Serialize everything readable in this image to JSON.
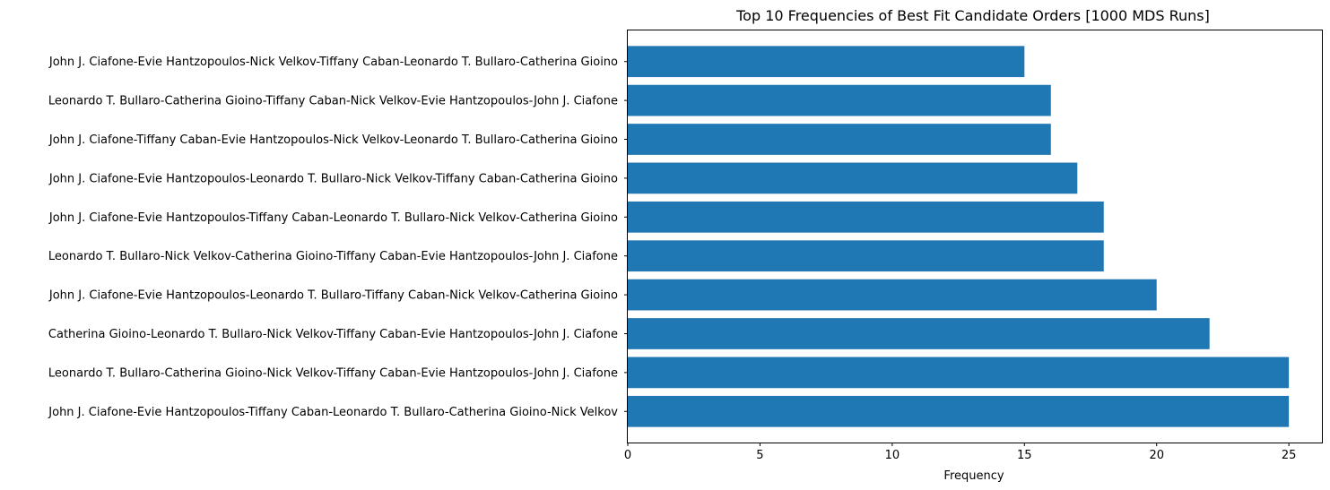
{
  "chart_data": {
    "type": "bar",
    "orientation": "horizontal",
    "title": "Top 10 Frequencies of Best Fit Candidate Orders [1000 MDS Runs]",
    "xlabel": "Frequency",
    "ylabel": "",
    "xlim": [
      0,
      26.25
    ],
    "xticks": [
      0,
      5,
      10,
      15,
      20,
      25
    ],
    "grid": false,
    "bar_color": "#1f77b4",
    "categories": [
      "John J. Ciafone-Evie Hantzopoulos-Tiffany Caban-Leonardo T. Bullaro-Catherina Gioino-Nick Velkov",
      "Leonardo T. Bullaro-Catherina Gioino-Nick Velkov-Tiffany Caban-Evie Hantzopoulos-John J. Ciafone",
      "Catherina Gioino-Leonardo T. Bullaro-Nick Velkov-Tiffany Caban-Evie Hantzopoulos-John J. Ciafone",
      "John J. Ciafone-Evie Hantzopoulos-Leonardo T. Bullaro-Tiffany Caban-Nick Velkov-Catherina Gioino",
      "Leonardo T. Bullaro-Nick Velkov-Catherina Gioino-Tiffany Caban-Evie Hantzopoulos-John J. Ciafone",
      "John J. Ciafone-Evie Hantzopoulos-Tiffany Caban-Leonardo T. Bullaro-Nick Velkov-Catherina Gioino",
      "John J. Ciafone-Evie Hantzopoulos-Leonardo T. Bullaro-Nick Velkov-Tiffany Caban-Catherina Gioino",
      "John J. Ciafone-Tiffany Caban-Evie Hantzopoulos-Nick Velkov-Leonardo T. Bullaro-Catherina Gioino",
      "Leonardo T. Bullaro-Catherina Gioino-Tiffany Caban-Nick Velkov-Evie Hantzopoulos-John J. Ciafone",
      "John J. Ciafone-Evie Hantzopoulos-Nick Velkov-Tiffany Caban-Leonardo T. Bullaro-Catherina Gioino"
    ],
    "values": [
      25,
      25,
      22,
      20,
      18,
      18,
      17,
      16,
      16,
      15
    ]
  }
}
